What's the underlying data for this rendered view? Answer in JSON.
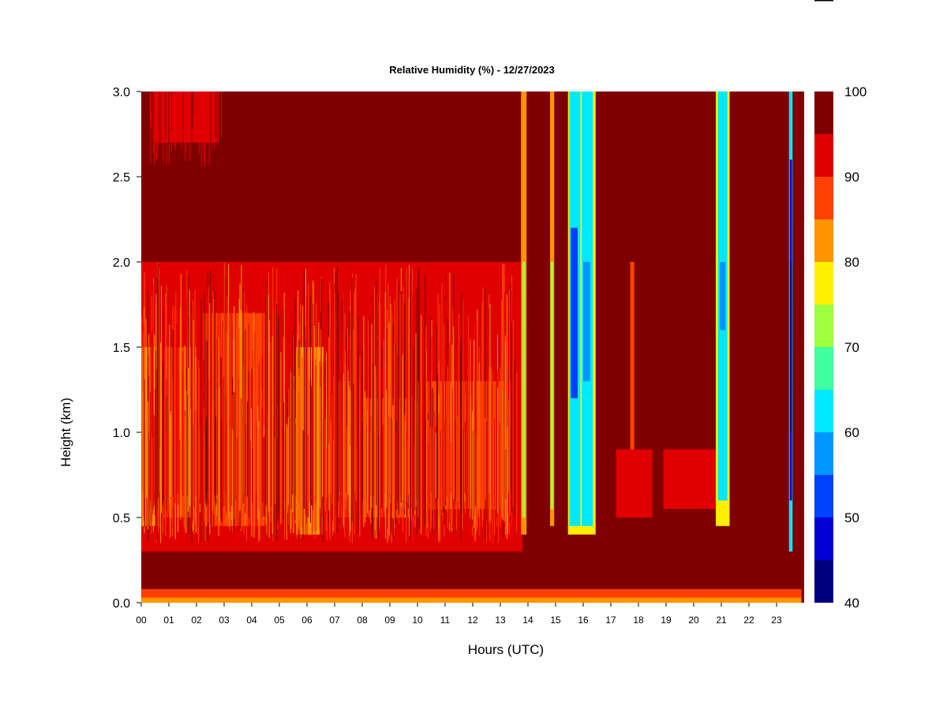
{
  "chart_data": {
    "type": "heatmap",
    "title": "Relative Humidity (%) - 12/27/2023",
    "xlabel": "Hours (UTC)",
    "ylabel": "Height (km)",
    "xlim": [
      0,
      24
    ],
    "ylim": [
      0,
      3.0
    ],
    "x_ticks": [
      "00",
      "01",
      "02",
      "03",
      "04",
      "05",
      "06",
      "07",
      "08",
      "09",
      "10",
      "11",
      "12",
      "13",
      "14",
      "15",
      "16",
      "17",
      "18",
      "19",
      "20",
      "21",
      "22",
      "23"
    ],
    "y_ticks": [
      "0.0",
      "0.5",
      "1.0",
      "1.5",
      "2.0",
      "2.5",
      "3.0"
    ],
    "colorbar": {
      "min": 40,
      "max": 100,
      "ticks": [
        "40",
        "50",
        "60",
        "70",
        "80",
        "90",
        "100"
      ],
      "levels": [
        {
          "from": 40,
          "to": 45,
          "color": "#00007f"
        },
        {
          "from": 45,
          "to": 50,
          "color": "#0000d4"
        },
        {
          "from": 50,
          "to": 55,
          "color": "#0040ff"
        },
        {
          "from": 55,
          "to": 60,
          "color": "#0096ff"
        },
        {
          "from": 60,
          "to": 65,
          "color": "#00e8ff"
        },
        {
          "from": 65,
          "to": 70,
          "color": "#40ff9e"
        },
        {
          "from": 70,
          "to": 75,
          "color": "#9eff40"
        },
        {
          "from": 75,
          "to": 80,
          "color": "#ffee00"
        },
        {
          "from": 80,
          "to": 85,
          "color": "#ff9400"
        },
        {
          "from": 85,
          "to": 90,
          "color": "#ff4000"
        },
        {
          "from": 90,
          "to": 95,
          "color": "#e00000"
        },
        {
          "from": 95,
          "to": 100,
          "color": "#7f0000"
        }
      ]
    },
    "background_rh": 97,
    "features": [
      {
        "kind": "band",
        "x0": 0.0,
        "x1": 13.8,
        "y0": 0.3,
        "y1": 2.0,
        "rh": 91
      },
      {
        "kind": "band",
        "x0": 0.0,
        "x1": 0.6,
        "y0": 0.45,
        "y1": 1.5,
        "rh": 83
      },
      {
        "kind": "band",
        "x0": 0.8,
        "x1": 2.0,
        "y0": 0.5,
        "y1": 1.5,
        "rh": 87
      },
      {
        "kind": "band",
        "x0": 2.2,
        "x1": 4.5,
        "y0": 0.45,
        "y1": 1.7,
        "rh": 87
      },
      {
        "kind": "band",
        "x0": 5.6,
        "x1": 6.6,
        "y0": 0.4,
        "y1": 1.5,
        "rh": 84
      },
      {
        "kind": "band",
        "x0": 7.0,
        "x1": 7.6,
        "y0": 0.5,
        "y1": 1.3,
        "rh": 86
      },
      {
        "kind": "band",
        "x0": 8.0,
        "x1": 9.8,
        "y0": 0.5,
        "y1": 1.2,
        "rh": 88
      },
      {
        "kind": "band",
        "x0": 10.3,
        "x1": 13.2,
        "y0": 0.55,
        "y1": 1.3,
        "rh": 89
      },
      {
        "kind": "band",
        "x0": 0.5,
        "x1": 2.8,
        "y0": 2.7,
        "y1": 3.0,
        "rh": 93
      },
      {
        "kind": "band",
        "x0": 13.75,
        "x1": 13.95,
        "y0": 0.4,
        "y1": 3.0,
        "rh": 83
      },
      {
        "kind": "band",
        "x0": 13.8,
        "x1": 13.9,
        "y0": 0.5,
        "y1": 2.0,
        "rh": 72
      },
      {
        "kind": "band",
        "x0": 14.8,
        "x1": 14.95,
        "y0": 0.45,
        "y1": 3.0,
        "rh": 84
      },
      {
        "kind": "band",
        "x0": 14.82,
        "x1": 14.92,
        "y0": 0.55,
        "y1": 2.0,
        "rh": 72
      },
      {
        "kind": "band",
        "x0": 15.45,
        "x1": 16.45,
        "y0": 0.4,
        "y1": 3.0,
        "rh": 78
      },
      {
        "kind": "band",
        "x0": 15.5,
        "x1": 15.9,
        "y0": 0.45,
        "y1": 3.0,
        "rh": 62
      },
      {
        "kind": "band",
        "x0": 15.95,
        "x1": 16.35,
        "y0": 0.45,
        "y1": 3.0,
        "rh": 64
      },
      {
        "kind": "band",
        "x0": 15.55,
        "x1": 15.8,
        "y0": 1.2,
        "y1": 2.2,
        "rh": 53
      },
      {
        "kind": "band",
        "x0": 16.0,
        "x1": 16.25,
        "y0": 1.3,
        "y1": 2.0,
        "rh": 57
      },
      {
        "kind": "band",
        "x0": 17.7,
        "x1": 17.85,
        "y0": 0.5,
        "y1": 2.0,
        "rh": 86
      },
      {
        "kind": "band",
        "x0": 17.2,
        "x1": 18.5,
        "y0": 0.5,
        "y1": 0.9,
        "rh": 90
      },
      {
        "kind": "band",
        "x0": 18.9,
        "x1": 20.8,
        "y0": 0.55,
        "y1": 0.9,
        "rh": 91
      },
      {
        "kind": "band",
        "x0": 20.8,
        "x1": 21.3,
        "y0": 0.45,
        "y1": 3.0,
        "rh": 76
      },
      {
        "kind": "band",
        "x0": 20.88,
        "x1": 21.22,
        "y0": 0.6,
        "y1": 3.0,
        "rh": 63
      },
      {
        "kind": "band",
        "x0": 20.95,
        "x1": 21.15,
        "y0": 1.6,
        "y1": 2.0,
        "rh": 58
      },
      {
        "kind": "band",
        "x0": 23.45,
        "x1": 23.58,
        "y0": 0.3,
        "y1": 3.0,
        "rh": 62
      },
      {
        "kind": "band",
        "x0": 23.48,
        "x1": 23.56,
        "y0": 0.6,
        "y1": 2.6,
        "rh": 46
      },
      {
        "kind": "band",
        "x0": 23.49,
        "x1": 23.55,
        "y0": 1.0,
        "y1": 2.0,
        "rh": 42
      },
      {
        "kind": "band",
        "x0": 0.0,
        "x1": 23.9,
        "y0": 0.0,
        "y1": 0.08,
        "rh": 89
      },
      {
        "kind": "band",
        "x0": 0.0,
        "x1": 23.9,
        "y0": 0.0,
        "y1": 0.03,
        "rh": 83
      }
    ]
  }
}
